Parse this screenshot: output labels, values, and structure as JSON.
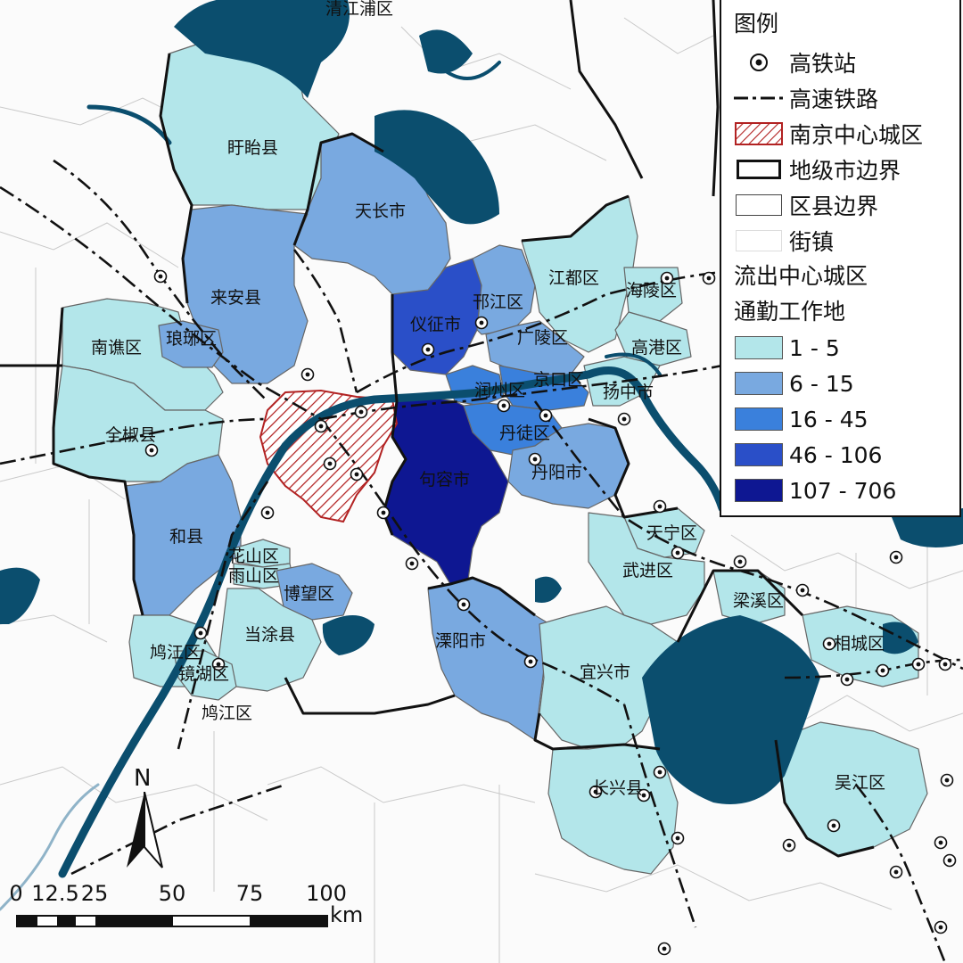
{
  "legend": {
    "title": "图例",
    "items": [
      {
        "label": "高铁站",
        "icon": "station-icon"
      },
      {
        "label": "高速铁路",
        "icon": "railway-line-icon"
      },
      {
        "label": "南京中心城区",
        "icon": "hatched-area-icon",
        "color": "#b22222"
      },
      {
        "label": "地级市边界",
        "icon": "thick-boundary-icon"
      },
      {
        "label": "区县边界",
        "icon": "thin-boundary-icon"
      },
      {
        "label": "街镇",
        "icon": "town-area-icon"
      }
    ],
    "subtitle_line1": "流出中心城区",
    "subtitle_line2": "通勤工作地",
    "classes": [
      {
        "label": "1 - 5",
        "color": "#b3e6ea"
      },
      {
        "label": "6 - 15",
        "color": "#79a9e0"
      },
      {
        "label": "16 - 45",
        "color": "#3a80dc"
      },
      {
        "label": "46 - 106",
        "color": "#2a4fc8"
      },
      {
        "label": "107 - 706",
        "color": "#0e1792"
      }
    ]
  },
  "regions": [
    {
      "name": "盱眙县",
      "class": 0
    },
    {
      "name": "天长市",
      "class": 1
    },
    {
      "name": "来安县",
      "class": 1
    },
    {
      "name": "南谯区",
      "class": 0
    },
    {
      "name": "琅琊区",
      "class": 1
    },
    {
      "name": "全椒县",
      "class": 0
    },
    {
      "name": "仪征市",
      "class": 3
    },
    {
      "name": "邗江区",
      "class": 1
    },
    {
      "name": "江都区",
      "class": 0
    },
    {
      "name": "海陵区",
      "class": 0
    },
    {
      "name": "广陵区",
      "class": 1
    },
    {
      "name": "高港区",
      "class": 0
    },
    {
      "name": "润州区",
      "class": 2
    },
    {
      "name": "丹徒区",
      "class": 2
    },
    {
      "name": "京口区",
      "class": 2
    },
    {
      "name": "扬中市",
      "class": 0
    },
    {
      "name": "丹阳市",
      "class": 1
    },
    {
      "name": "句容市",
      "class": 4
    },
    {
      "name": "和县",
      "class": 1
    },
    {
      "name": "花山区",
      "class": 0
    },
    {
      "name": "雨山区",
      "class": 0
    },
    {
      "name": "博望区",
      "class": 1
    },
    {
      "name": "当涂县",
      "class": 0
    },
    {
      "name": "鸠江区",
      "class": 0
    },
    {
      "name": "镜湖区",
      "class": 0
    },
    {
      "name": "溧阳市",
      "class": 1
    },
    {
      "name": "天宁区",
      "class": 0
    },
    {
      "name": "武进区",
      "class": 0
    },
    {
      "name": "梁溪区",
      "class": 0
    },
    {
      "name": "宜兴市",
      "class": 0
    },
    {
      "name": "相城区",
      "class": 0
    },
    {
      "name": "长兴县",
      "class": 0
    },
    {
      "name": "吴江区",
      "class": 0
    }
  ],
  "map_labels": {
    "qingjiangpu": "清江浦区",
    "jiujiang_partial": "鸠江区"
  },
  "scale": {
    "ticks": [
      "0",
      "12.5",
      "25",
      "50",
      "75",
      "100"
    ],
    "unit": "km"
  },
  "north": "N",
  "colors": {
    "water": "#0b4e6e",
    "town_fill": "#ffffff",
    "background": "#fbfbfb",
    "hatch": "#b22222"
  }
}
